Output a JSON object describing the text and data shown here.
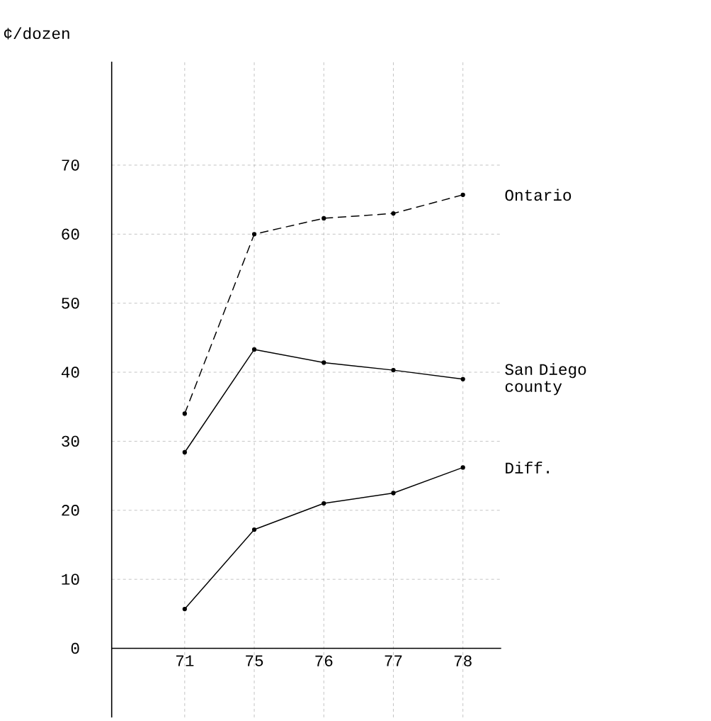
{
  "chart_data": {
    "type": "line",
    "ylabel": "¢/dozen",
    "categories": [
      "71",
      "75",
      "76",
      "77",
      "78"
    ],
    "series": [
      {
        "name": "Ontario",
        "color": "#000000",
        "line_style": "dashed",
        "values": [
          34,
          60,
          62.3,
          63,
          65.7
        ]
      },
      {
        "name": "San Diego county",
        "color": "#000000",
        "line_style": "solid",
        "values": [
          28.4,
          43.3,
          41.4,
          40.3,
          39
        ]
      },
      {
        "name": "Diff.",
        "color": "#000000",
        "line_style": "solid",
        "values": [
          5.7,
          17.2,
          21,
          22.5,
          26.2
        ]
      }
    ],
    "ylim": [
      -10,
      85
    ],
    "yticks": [
      0,
      10,
      20,
      30,
      40,
      50,
      60,
      70
    ],
    "grid": true,
    "marker": "circle"
  }
}
